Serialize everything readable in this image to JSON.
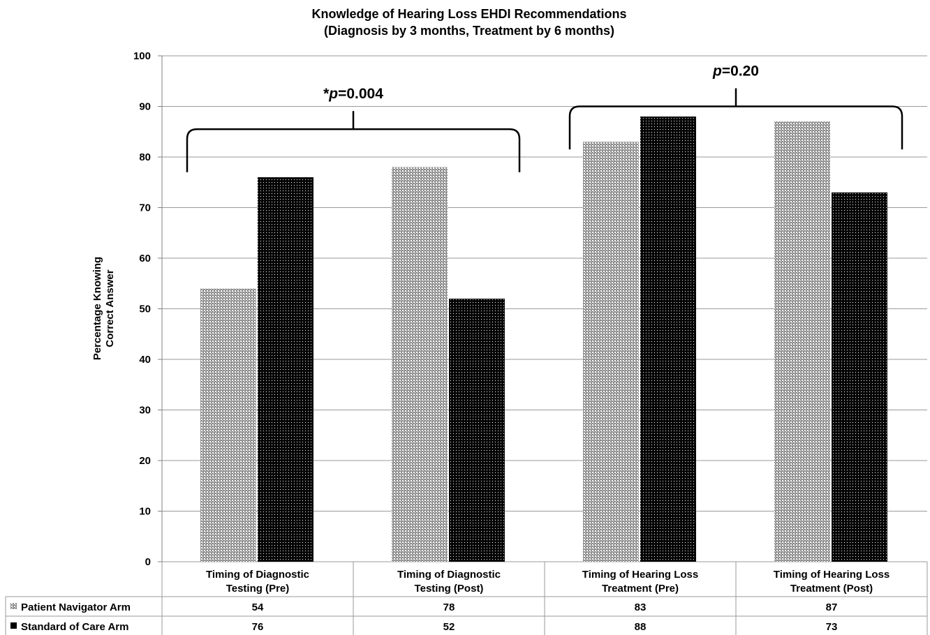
{
  "chart_data": {
    "type": "bar",
    "title": [
      "Knowledge of Hearing Loss EHDI Recommendations",
      "(Diagnosis by 3 months, Treatment by 6 months)"
    ],
    "ylabel": [
      "Percentage Knowing",
      "Correct Answer"
    ],
    "xlabel": "",
    "ylim": [
      0,
      100
    ],
    "yticks": [
      0,
      10,
      20,
      30,
      40,
      50,
      60,
      70,
      80,
      90,
      100
    ],
    "grid": true,
    "legend": "data-table",
    "categories": [
      [
        "Timing of Diagnostic",
        "Testing (Pre)"
      ],
      [
        "Timing of Diagnostic",
        "Testing (Post)"
      ],
      [
        "Timing of Hearing Loss",
        "Treatment (Pre)"
      ],
      [
        "Timing of Hearing Loss",
        "Treatment (Post)"
      ]
    ],
    "series": [
      {
        "name": "Patient Navigator Arm",
        "values": [
          54,
          78,
          83,
          87
        ],
        "pattern": "light-dotted",
        "color": "#7a7a7a"
      },
      {
        "name": "Standard of Care Arm",
        "values": [
          76,
          52,
          88,
          73
        ],
        "pattern": "dark-dotted",
        "color": "#0a0a0a"
      }
    ],
    "annotations": [
      {
        "prefix": "*",
        "italic": "p",
        "suffix": "=0.004",
        "groups": [
          0,
          1
        ]
      },
      {
        "prefix": "",
        "italic": "p",
        "suffix": "=0.20",
        "groups": [
          2,
          3
        ]
      }
    ]
  }
}
